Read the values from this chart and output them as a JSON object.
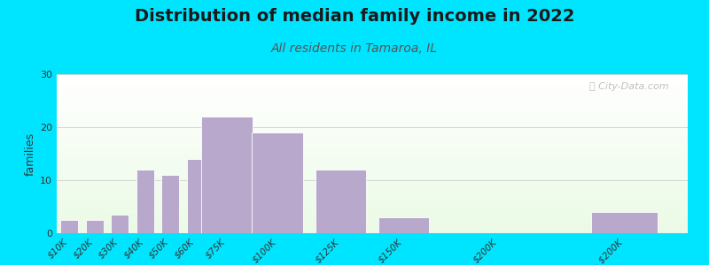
{
  "title": "Distribution of median family income in 2022",
  "subtitle": "All residents in Tamaroa, IL",
  "ylabel": "families",
  "categories": [
    "$10K",
    "$20K",
    "$30K",
    "$40K",
    "$50K",
    "$60K",
    "$75K",
    "$100K",
    "$125K",
    "$150K",
    "$200K",
    "> $200K"
  ],
  "values": [
    2.5,
    2.5,
    3.5,
    12,
    11,
    14,
    22,
    19,
    12,
    3,
    0,
    4
  ],
  "bar_color": "#b8a8cc",
  "bar_edge_color": "#ffffff",
  "ylim": [
    0,
    30
  ],
  "yticks": [
    0,
    10,
    20,
    30
  ],
  "bg_outer": "#00e5ff",
  "title_fontsize": 14,
  "subtitle_fontsize": 10,
  "subtitle_color": "#555555",
  "ylabel_fontsize": 9,
  "watermark_text": "ⓘ City-Data.com",
  "grid_color": "#cccccc",
  "bar_positions": [
    5,
    15,
    25,
    35,
    45,
    55,
    67.5,
    87.5,
    112.5,
    137.5,
    175,
    225
  ],
  "bar_widths": [
    8,
    8,
    8,
    8,
    8,
    8,
    23,
    23,
    23,
    23,
    30,
    30
  ]
}
